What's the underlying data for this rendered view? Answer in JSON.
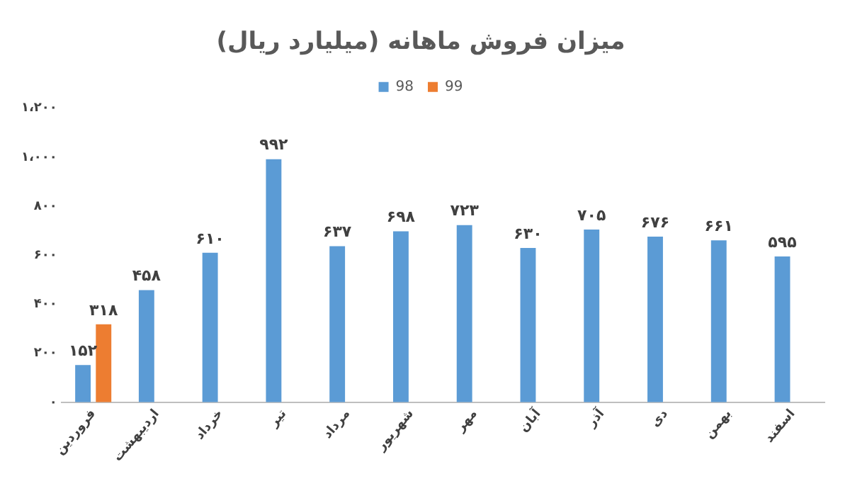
{
  "chart_data": {
    "type": "bar",
    "title": "میزان فروش ماهانه (میلیارد ریال)",
    "categories": [
      "فروردین",
      "اردیبهشت",
      "خرداد",
      "تیر",
      "مرداد",
      "شهریور",
      "مهر",
      "آبان",
      "آذر",
      "دی",
      "بهمن",
      "اسفند"
    ],
    "series": [
      {
        "name": "98",
        "color": "#5b9bd5",
        "values": [
          152,
          458,
          610,
          992,
          637,
          698,
          723,
          630,
          705,
          676,
          661,
          595
        ],
        "value_labels": [
          "۱۵۲",
          "۴۵۸",
          "۶۱۰",
          "۹۹۲",
          "۶۳۷",
          "۶۹۸",
          "۷۲۳",
          "۶۳۰",
          "۷۰۵",
          "۶۷۶",
          "۶۶۱",
          "۵۹۵"
        ]
      },
      {
        "name": "99",
        "color": "#ed7d31",
        "values": [
          318,
          null,
          null,
          null,
          null,
          null,
          null,
          null,
          null,
          null,
          null,
          null
        ],
        "value_labels": [
          "۳۱۸",
          null,
          null,
          null,
          null,
          null,
          null,
          null,
          null,
          null,
          null,
          null
        ]
      }
    ],
    "ylim": [
      0,
      1200
    ],
    "yticks": [
      {
        "value": 0,
        "label": "۰"
      },
      {
        "value": 200,
        "label": "۲۰۰"
      },
      {
        "value": 400,
        "label": "۴۰۰"
      },
      {
        "value": 600,
        "label": "۶۰۰"
      },
      {
        "value": 800,
        "label": "۸۰۰"
      },
      {
        "value": 1000,
        "label": "۱،۰۰۰"
      },
      {
        "value": 1200,
        "label": "۱،۲۰۰"
      }
    ],
    "grid": false,
    "legend": "top"
  }
}
